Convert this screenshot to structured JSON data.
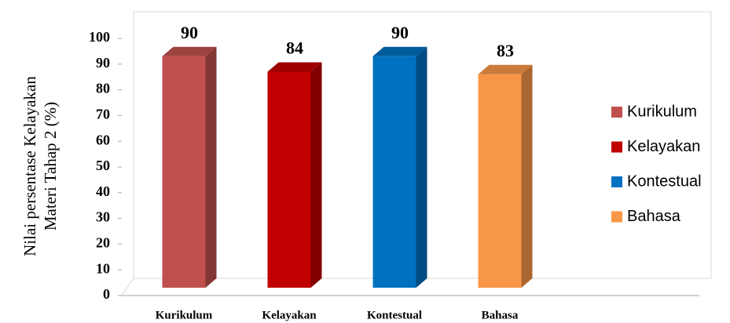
{
  "chart_data": {
    "type": "bar",
    "y_label": [
      "Nilai persentase Kelayakan",
      "Materi Tahap 2 (%)"
    ],
    "categories": [
      "Kurikulum",
      "Kelayakan",
      "Kontestual",
      "Bahasa"
    ],
    "values": [
      90,
      84,
      90,
      83
    ],
    "colors": [
      "#c0504d",
      "#c00000",
      "#0070c0",
      "#f79646"
    ],
    "ylim": [
      0,
      100
    ],
    "yticks": [
      0,
      10,
      20,
      30,
      40,
      50,
      60,
      70,
      80,
      90,
      100
    ],
    "legend": "right"
  }
}
